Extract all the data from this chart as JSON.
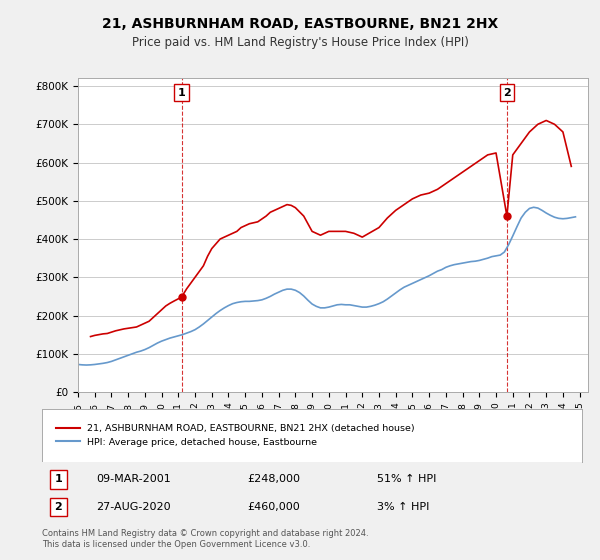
{
  "title": "21, ASHBURNHAM ROAD, EASTBOURNE, BN21 2HX",
  "subtitle": "Price paid vs. HM Land Registry's House Price Index (HPI)",
  "ylabel_ticks": [
    "£0",
    "£100K",
    "£200K",
    "£300K",
    "£400K",
    "£500K",
    "£600K",
    "£700K",
    "£800K"
  ],
  "ytick_values": [
    0,
    100000,
    200000,
    300000,
    400000,
    500000,
    600000,
    700000,
    800000
  ],
  "ylim": [
    0,
    820000
  ],
  "xlim_start": 1995.0,
  "xlim_end": 2025.5,
  "hpi_color": "#6699cc",
  "price_color": "#cc0000",
  "marker1_x": 2001.19,
  "marker1_y": 248000,
  "marker1_label": "1",
  "marker1_date": "09-MAR-2001",
  "marker1_price": "£248,000",
  "marker1_hpi": "51% ↑ HPI",
  "marker2_x": 2020.65,
  "marker2_y": 460000,
  "marker2_label": "2",
  "marker2_date": "27-AUG-2020",
  "marker2_price": "£460,000",
  "marker2_hpi": "3% ↑ HPI",
  "legend_line1": "21, ASHBURNHAM ROAD, EASTBOURNE, BN21 2HX (detached house)",
  "legend_line2": "HPI: Average price, detached house, Eastbourne",
  "footer": "Contains HM Land Registry data © Crown copyright and database right 2024.\nThis data is licensed under the Open Government Licence v3.0.",
  "bg_color": "#f0f0f0",
  "plot_bg_color": "#ffffff",
  "grid_color": "#cccccc",
  "hpi_data_x": [
    1995.0,
    1995.25,
    1995.5,
    1995.75,
    1996.0,
    1996.25,
    1996.5,
    1996.75,
    1997.0,
    1997.25,
    1997.5,
    1997.75,
    1998.0,
    1998.25,
    1998.5,
    1998.75,
    1999.0,
    1999.25,
    1999.5,
    1999.75,
    2000.0,
    2000.25,
    2000.5,
    2000.75,
    2001.0,
    2001.25,
    2001.5,
    2001.75,
    2002.0,
    2002.25,
    2002.5,
    2002.75,
    2003.0,
    2003.25,
    2003.5,
    2003.75,
    2004.0,
    2004.25,
    2004.5,
    2004.75,
    2005.0,
    2005.25,
    2005.5,
    2005.75,
    2006.0,
    2006.25,
    2006.5,
    2006.75,
    2007.0,
    2007.25,
    2007.5,
    2007.75,
    2008.0,
    2008.25,
    2008.5,
    2008.75,
    2009.0,
    2009.25,
    2009.5,
    2009.75,
    2010.0,
    2010.25,
    2010.5,
    2010.75,
    2011.0,
    2011.25,
    2011.5,
    2011.75,
    2012.0,
    2012.25,
    2012.5,
    2012.75,
    2013.0,
    2013.25,
    2013.5,
    2013.75,
    2014.0,
    2014.25,
    2014.5,
    2014.75,
    2015.0,
    2015.25,
    2015.5,
    2015.75,
    2016.0,
    2016.25,
    2016.5,
    2016.75,
    2017.0,
    2017.25,
    2017.5,
    2017.75,
    2018.0,
    2018.25,
    2018.5,
    2018.75,
    2019.0,
    2019.25,
    2019.5,
    2019.75,
    2020.0,
    2020.25,
    2020.5,
    2020.75,
    2021.0,
    2021.25,
    2021.5,
    2021.75,
    2022.0,
    2022.25,
    2022.5,
    2022.75,
    2023.0,
    2023.25,
    2023.5,
    2023.75,
    2024.0,
    2024.25,
    2024.5,
    2024.75
  ],
  "hpi_data_y": [
    72000,
    71000,
    70500,
    71000,
    72000,
    73500,
    75000,
    77000,
    80000,
    84000,
    88000,
    92000,
    96000,
    100000,
    104000,
    107000,
    111000,
    116000,
    122000,
    128000,
    133000,
    137000,
    141000,
    144000,
    147000,
    150000,
    154000,
    158000,
    163000,
    170000,
    178000,
    187000,
    196000,
    205000,
    213000,
    220000,
    226000,
    231000,
    234000,
    236000,
    237000,
    237000,
    238000,
    239000,
    241000,
    245000,
    250000,
    256000,
    261000,
    266000,
    269000,
    269000,
    266000,
    260000,
    251000,
    240000,
    230000,
    224000,
    220000,
    220000,
    222000,
    225000,
    228000,
    229000,
    228000,
    228000,
    226000,
    224000,
    222000,
    222000,
    224000,
    227000,
    231000,
    236000,
    243000,
    251000,
    259000,
    267000,
    274000,
    279000,
    284000,
    289000,
    294000,
    299000,
    304000,
    310000,
    316000,
    320000,
    326000,
    330000,
    333000,
    335000,
    337000,
    339000,
    341000,
    342000,
    344000,
    347000,
    350000,
    354000,
    356000,
    358000,
    366000,
    385000,
    408000,
    432000,
    455000,
    470000,
    480000,
    483000,
    481000,
    475000,
    468000,
    462000,
    457000,
    454000,
    453000,
    454000,
    456000,
    458000
  ],
  "price_data_x": [
    1995.75,
    1996.0,
    1996.25,
    1996.5,
    1996.75,
    1997.25,
    1997.75,
    1998.5,
    1999.25,
    1999.5,
    1999.75,
    2000.0,
    2000.25,
    2000.5,
    2000.75,
    2001.19,
    2001.5,
    2001.75,
    2002.5,
    2002.75,
    2003.0,
    2003.5,
    2004.5,
    2004.75,
    2005.0,
    2005.25,
    2005.75,
    2006.25,
    2006.5,
    2006.75,
    2007.0,
    2007.5,
    2007.75,
    2008.0,
    2008.5,
    2008.75,
    2009.0,
    2009.5,
    2009.75,
    2010.0,
    2011.0,
    2011.5,
    2011.75,
    2012.0,
    2013.0,
    2013.5,
    2014.0,
    2014.5,
    2015.0,
    2015.5,
    2016.0,
    2016.5,
    2017.0,
    2017.5,
    2018.0,
    2018.5,
    2019.0,
    2019.5,
    2020.0,
    2020.65,
    2021.0,
    2021.5,
    2022.0,
    2022.5,
    2023.0,
    2023.5,
    2024.0,
    2024.5
  ],
  "price_data_y": [
    145000,
    148000,
    150000,
    152000,
    153000,
    160000,
    165000,
    170000,
    185000,
    195000,
    205000,
    215000,
    225000,
    232000,
    238000,
    248000,
    270000,
    285000,
    330000,
    355000,
    375000,
    400000,
    420000,
    430000,
    435000,
    440000,
    445000,
    460000,
    470000,
    475000,
    480000,
    490000,
    488000,
    482000,
    460000,
    440000,
    420000,
    410000,
    415000,
    420000,
    420000,
    415000,
    410000,
    405000,
    430000,
    455000,
    475000,
    490000,
    505000,
    515000,
    520000,
    530000,
    545000,
    560000,
    575000,
    590000,
    605000,
    620000,
    625000,
    460000,
    620000,
    650000,
    680000,
    700000,
    710000,
    700000,
    680000,
    590000
  ]
}
